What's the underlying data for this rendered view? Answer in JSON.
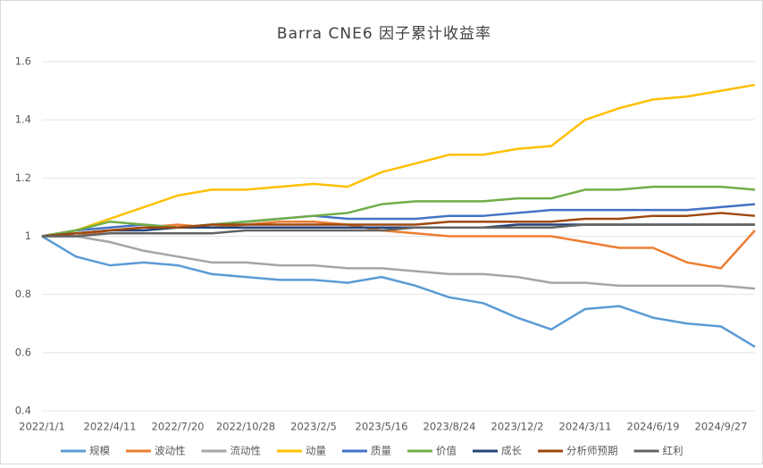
{
  "chart_data": {
    "type": "line",
    "title": "Barra CNE6 因子累计收益率",
    "categories": [
      "2022/1/1",
      null,
      "2022/4/11",
      null,
      "2022/7/20",
      null,
      "2022/10/28",
      null,
      "2023/2/5",
      null,
      "2023/5/16",
      null,
      "2023/8/24",
      null,
      "2023/12/2",
      null,
      "2024/3/11",
      null,
      "2024/6/19",
      null,
      "2024/9/27",
      null
    ],
    "ylim": [
      0.4,
      1.6
    ],
    "yticks": [
      0.4,
      0.6,
      0.8,
      1,
      1.2,
      1.4,
      1.6
    ],
    "grid": true,
    "legend": "bottom",
    "series": [
      {
        "name": "规模",
        "color": "#5b9bd5",
        "values": [
          1.0,
          0.93,
          0.9,
          0.91,
          0.9,
          0.87,
          0.86,
          0.85,
          0.85,
          0.84,
          0.86,
          0.83,
          0.79,
          0.77,
          0.72,
          0.68,
          0.75,
          0.76,
          0.72,
          0.7,
          0.69,
          0.62
        ]
      },
      {
        "name": "波动性",
        "color": "#ed7d31",
        "values": [
          1.0,
          1.0,
          1.02,
          1.03,
          1.04,
          1.03,
          1.04,
          1.05,
          1.05,
          1.04,
          1.02,
          1.01,
          1.0,
          1.0,
          1.0,
          1.0,
          0.98,
          0.96,
          0.96,
          0.91,
          0.89,
          1.02
        ]
      },
      {
        "name": "流动性",
        "color": "#a5a5a5",
        "values": [
          1.0,
          1.0,
          0.98,
          0.95,
          0.93,
          0.91,
          0.91,
          0.9,
          0.9,
          0.89,
          0.89,
          0.88,
          0.87,
          0.87,
          0.86,
          0.84,
          0.84,
          0.83,
          0.83,
          0.83,
          0.83,
          0.82
        ]
      },
      {
        "name": "动量",
        "color": "#ffc000",
        "values": [
          1.0,
          1.02,
          1.06,
          1.1,
          1.14,
          1.16,
          1.16,
          1.17,
          1.18,
          1.17,
          1.22,
          1.25,
          1.28,
          1.28,
          1.3,
          1.31,
          1.4,
          1.44,
          1.47,
          1.48,
          1.5,
          1.52
        ]
      },
      {
        "name": "质量",
        "color": "#4472c4",
        "values": [
          1.0,
          1.02,
          1.03,
          1.04,
          1.03,
          1.04,
          1.05,
          1.06,
          1.07,
          1.06,
          1.06,
          1.06,
          1.07,
          1.07,
          1.08,
          1.09,
          1.09,
          1.09,
          1.09,
          1.09,
          1.1,
          1.11
        ]
      },
      {
        "name": "价值",
        "color": "#70ad47",
        "values": [
          1.0,
          1.02,
          1.05,
          1.04,
          1.03,
          1.04,
          1.05,
          1.06,
          1.07,
          1.08,
          1.11,
          1.12,
          1.12,
          1.12,
          1.13,
          1.13,
          1.16,
          1.16,
          1.17,
          1.17,
          1.17,
          1.16
        ]
      },
      {
        "name": "成长",
        "color": "#264478",
        "values": [
          1.0,
          1.01,
          1.02,
          1.02,
          1.03,
          1.03,
          1.03,
          1.03,
          1.03,
          1.03,
          1.03,
          1.03,
          1.03,
          1.03,
          1.04,
          1.04,
          1.04,
          1.04,
          1.04,
          1.04,
          1.04,
          1.04
        ]
      },
      {
        "name": "分析师预期",
        "color": "#9e480e",
        "values": [
          1.0,
          1.01,
          1.02,
          1.03,
          1.03,
          1.04,
          1.04,
          1.04,
          1.04,
          1.04,
          1.04,
          1.04,
          1.05,
          1.05,
          1.05,
          1.05,
          1.06,
          1.06,
          1.07,
          1.07,
          1.08,
          1.07
        ]
      },
      {
        "name": "红利",
        "color": "#636363",
        "values": [
          1.0,
          1.0,
          1.01,
          1.01,
          1.01,
          1.01,
          1.02,
          1.02,
          1.02,
          1.02,
          1.02,
          1.03,
          1.03,
          1.03,
          1.03,
          1.03,
          1.04,
          1.04,
          1.04,
          1.04,
          1.04,
          1.04
        ]
      }
    ]
  }
}
